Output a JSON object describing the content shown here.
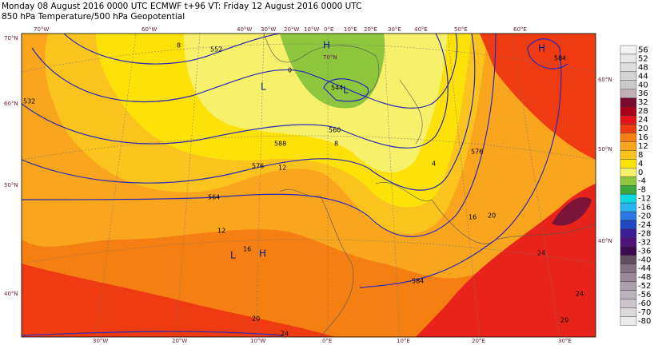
{
  "header": {
    "line1": "Monday 08 August 2016 0000 UTC  ECMWF t+96  VT: Friday 12 August 2016 0000 UTC",
    "line2": "850 hPa Temperature/500 hPa Geopotential"
  },
  "map": {
    "top_labels": [
      "70°W",
      "60°W",
      "40°W",
      "30°W",
      "20°W",
      "10°W",
      "0°E",
      "10°E",
      "20°E",
      "30°E",
      "40°E",
      "50°E",
      "60°E"
    ],
    "bottom_labels": [
      "30°W",
      "20°W",
      "10°W",
      "0°E",
      "10°E",
      "20°E",
      "30°E"
    ],
    "left_labels": [
      "70°N",
      "60°N",
      "50°N",
      "40°N"
    ],
    "right_labels": [
      "60°N",
      "50°N",
      "40°N"
    ],
    "inner_labels": [
      "70°N"
    ],
    "centers": [
      "H",
      "L",
      "L",
      "H",
      "L",
      "H"
    ],
    "contour_labels": [
      "564",
      "576",
      "588",
      "560",
      "544",
      "552",
      "576",
      "584",
      "584",
      "532",
      "12",
      "16",
      "16",
      "20",
      "24",
      "24",
      "20",
      "24",
      "20",
      "8",
      "12",
      "4",
      "0",
      "8"
    ]
  },
  "colorbar": {
    "labels": [
      56,
      52,
      48,
      44,
      40,
      36,
      32,
      28,
      24,
      20,
      16,
      12,
      8,
      4,
      0,
      -4,
      -8,
      -12,
      -16,
      -20,
      -24,
      -28,
      -32,
      -36,
      -40,
      -44,
      -48,
      -52,
      -56,
      -60,
      -70,
      -80
    ],
    "colors": [
      "#f2f2f2",
      "#e8e8e8",
      "#dedede",
      "#d4d4d4",
      "#cacaca",
      "#c0b0b8",
      "#7a0a30",
      "#a8001c",
      "#e0141a",
      "#ee3b12",
      "#f57f12",
      "#f9a51e",
      "#fbc31e",
      "#fde20a",
      "#f6f06a",
      "#8ec63e",
      "#3ca83c",
      "#10d8e0",
      "#28b4f0",
      "#2878e0",
      "#2046c0",
      "#3c1e96",
      "#501478",
      "#3c0a50",
      "#605060",
      "#807080",
      "#988898",
      "#aaa0aa",
      "#bcb4bc",
      "#ccc6cc",
      "#dcd8dc",
      "#ececec"
    ]
  }
}
